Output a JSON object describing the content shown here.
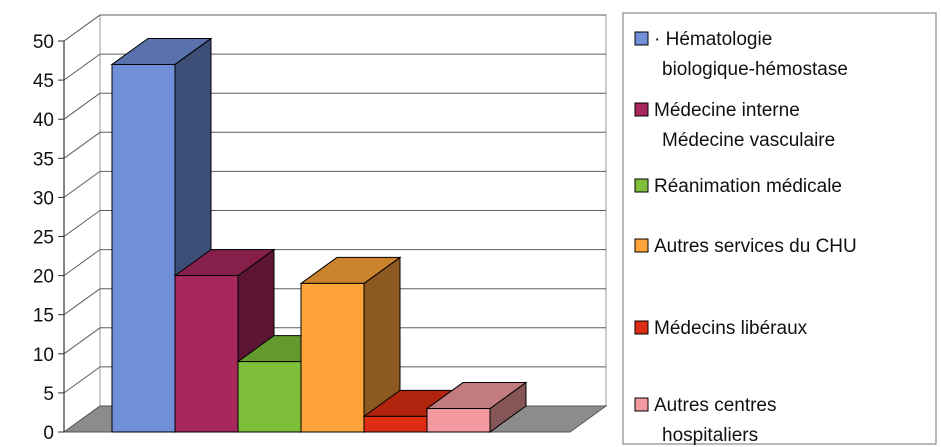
{
  "chart_data": {
    "type": "bar",
    "title": "",
    "xlabel": "",
    "ylabel": "",
    "ylim": [
      0,
      50
    ],
    "yticks": [
      0,
      5,
      10,
      15,
      20,
      25,
      30,
      35,
      40,
      45,
      50
    ],
    "grid": true,
    "legend_position": "right",
    "style": "3d",
    "series": [
      {
        "name": "· Hématologie biologique-hémostase",
        "legend_lines": [
          "· Hématologie",
          "biologique-hémostase"
        ],
        "value": 47,
        "color": "#6F8FD8"
      },
      {
        "name": "Médecine interne Médecine vasculaire",
        "legend_lines": [
          "Médecine interne",
          "Médecine vasculaire"
        ],
        "value": 20,
        "color": "#A8285E"
      },
      {
        "name": "Réanimation médicale",
        "legend_lines": [
          "Réanimation médicale"
        ],
        "value": 9,
        "color": "#7DBF3B"
      },
      {
        "name": "Autres services du CHU",
        "legend_lines": [
          "Autres services du CHU"
        ],
        "value": 19,
        "color": "#FFA43A"
      },
      {
        "name": "Médecins libéraux",
        "legend_lines": [
          "Médecins libéraux"
        ],
        "value": 2,
        "color": "#DD2D12"
      },
      {
        "name": "Autres centres hospitaliers",
        "legend_lines": [
          "Autres centres",
          "hospitaliers"
        ],
        "value": 3,
        "color": "#F29A9F"
      }
    ]
  }
}
